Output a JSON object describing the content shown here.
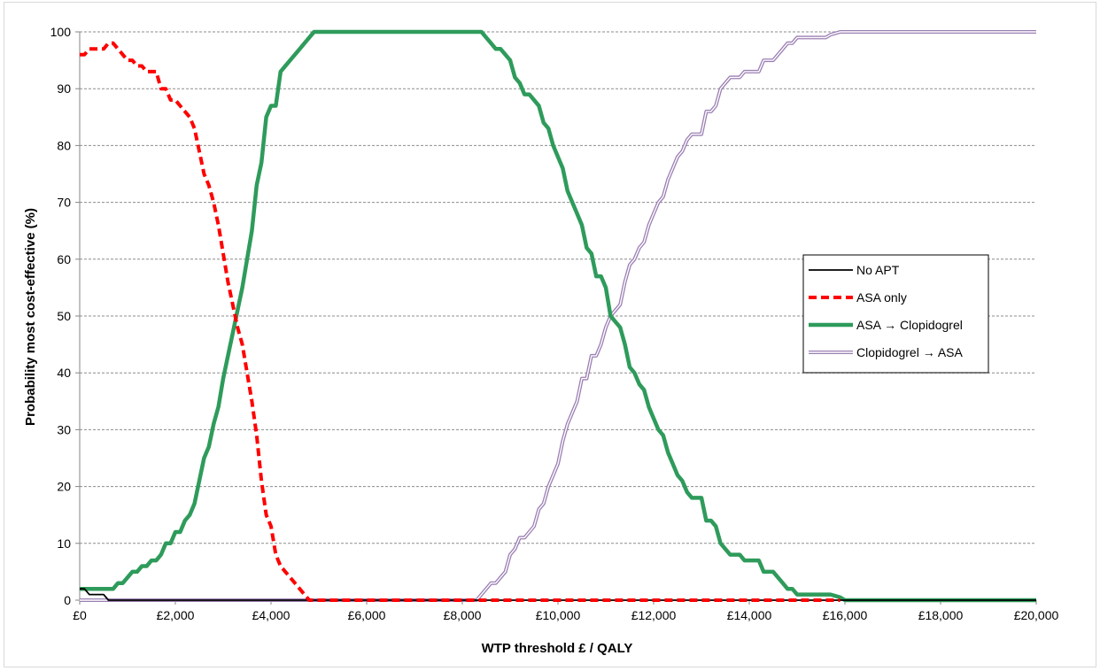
{
  "chart_data": {
    "type": "line",
    "title": "",
    "xlabel": "WTP threshold £ / QALY",
    "ylabel": "Probability most cost-effective (%)",
    "xlim": [
      0,
      20000
    ],
    "ylim": [
      0,
      100
    ],
    "grid": "horizontal dashed",
    "legend_position": "right-center",
    "x_ticks": [
      0,
      2000,
      4000,
      6000,
      8000,
      10000,
      12000,
      14000,
      16000,
      18000,
      20000
    ],
    "x_tick_labels": [
      "£0",
      "£2,000",
      "£4,000",
      "£6,000",
      "£8,000",
      "£10,000",
      "£12,000",
      "£14,000",
      "£16,000",
      "£18,000",
      "£20,000"
    ],
    "y_ticks": [
      0,
      10,
      20,
      30,
      40,
      50,
      60,
      70,
      80,
      90,
      100
    ],
    "y_tick_labels": [
      "0",
      "10",
      "20",
      "30",
      "40",
      "50",
      "60",
      "70",
      "80",
      "90",
      "100"
    ],
    "series": [
      {
        "name": "No APT",
        "color": "#000000",
        "style": "solid-thin",
        "points": [
          [
            0,
            2
          ],
          [
            100,
            2
          ],
          [
            200,
            1
          ],
          [
            300,
            1
          ],
          [
            400,
            1
          ],
          [
            500,
            1
          ],
          [
            600,
            0
          ],
          [
            700,
            0
          ],
          [
            20000,
            0
          ]
        ]
      },
      {
        "name": "ASA only",
        "color": "#ff0000",
        "style": "dashed",
        "points": [
          [
            0,
            96
          ],
          [
            100,
            96
          ],
          [
            200,
            97
          ],
          [
            300,
            97
          ],
          [
            400,
            97
          ],
          [
            500,
            97
          ],
          [
            600,
            98
          ],
          [
            700,
            98
          ],
          [
            800,
            97
          ],
          [
            900,
            96
          ],
          [
            1000,
            95
          ],
          [
            1100,
            95
          ],
          [
            1200,
            94
          ],
          [
            1300,
            94
          ],
          [
            1400,
            93
          ],
          [
            1500,
            93
          ],
          [
            1600,
            93
          ],
          [
            1700,
            90
          ],
          [
            1800,
            90
          ],
          [
            1900,
            88
          ],
          [
            2000,
            88
          ],
          [
            2100,
            87
          ],
          [
            2200,
            86
          ],
          [
            2300,
            85
          ],
          [
            2400,
            83
          ],
          [
            2500,
            79
          ],
          [
            2600,
            75
          ],
          [
            2700,
            73
          ],
          [
            2800,
            70
          ],
          [
            2900,
            66
          ],
          [
            3000,
            61
          ],
          [
            3100,
            56
          ],
          [
            3200,
            52
          ],
          [
            3300,
            48
          ],
          [
            3400,
            45
          ],
          [
            3500,
            40
          ],
          [
            3600,
            35
          ],
          [
            3700,
            29
          ],
          [
            3800,
            21
          ],
          [
            3900,
            15
          ],
          [
            4000,
            13
          ],
          [
            4100,
            8
          ],
          [
            4200,
            6
          ],
          [
            4300,
            5
          ],
          [
            4400,
            4
          ],
          [
            4500,
            3
          ],
          [
            4600,
            2
          ],
          [
            4700,
            1
          ],
          [
            4800,
            0
          ],
          [
            15900,
            0
          ]
        ]
      },
      {
        "name": "ASA → Clopidogrel",
        "color": "#2e9b5b",
        "style": "solid-thick",
        "points": [
          [
            0,
            2
          ],
          [
            100,
            2
          ],
          [
            200,
            2
          ],
          [
            300,
            2
          ],
          [
            400,
            2
          ],
          [
            500,
            2
          ],
          [
            600,
            2
          ],
          [
            700,
            2
          ],
          [
            800,
            3
          ],
          [
            900,
            3
          ],
          [
            1000,
            4
          ],
          [
            1100,
            5
          ],
          [
            1200,
            5
          ],
          [
            1300,
            6
          ],
          [
            1400,
            6
          ],
          [
            1500,
            7
          ],
          [
            1600,
            7
          ],
          [
            1700,
            8
          ],
          [
            1800,
            10
          ],
          [
            1900,
            10
          ],
          [
            2000,
            12
          ],
          [
            2100,
            12
          ],
          [
            2200,
            14
          ],
          [
            2300,
            15
          ],
          [
            2400,
            17
          ],
          [
            2500,
            21
          ],
          [
            2600,
            25
          ],
          [
            2700,
            27
          ],
          [
            2800,
            31
          ],
          [
            2900,
            34
          ],
          [
            3000,
            39
          ],
          [
            3100,
            43
          ],
          [
            3200,
            47
          ],
          [
            3300,
            51
          ],
          [
            3400,
            55
          ],
          [
            3500,
            60
          ],
          [
            3600,
            65
          ],
          [
            3700,
            73
          ],
          [
            3800,
            77
          ],
          [
            3900,
            85
          ],
          [
            4000,
            87
          ],
          [
            4100,
            87
          ],
          [
            4200,
            93
          ],
          [
            4300,
            94
          ],
          [
            4400,
            95
          ],
          [
            4500,
            96
          ],
          [
            4600,
            97
          ],
          [
            4700,
            98
          ],
          [
            4800,
            99
          ],
          [
            4900,
            100
          ],
          [
            8400,
            100
          ],
          [
            8500,
            99
          ],
          [
            8600,
            98
          ],
          [
            8700,
            97
          ],
          [
            8800,
            97
          ],
          [
            8900,
            96
          ],
          [
            9000,
            95
          ],
          [
            9100,
            92
          ],
          [
            9200,
            91
          ],
          [
            9300,
            89
          ],
          [
            9400,
            89
          ],
          [
            9500,
            88
          ],
          [
            9600,
            87
          ],
          [
            9700,
            84
          ],
          [
            9800,
            83
          ],
          [
            9900,
            80
          ],
          [
            10000,
            78
          ],
          [
            10100,
            76
          ],
          [
            10200,
            72
          ],
          [
            10300,
            70
          ],
          [
            10400,
            68
          ],
          [
            10500,
            66
          ],
          [
            10600,
            62
          ],
          [
            10700,
            61
          ],
          [
            10800,
            57
          ],
          [
            10900,
            57
          ],
          [
            11000,
            55
          ],
          [
            11100,
            50
          ],
          [
            11200,
            49
          ],
          [
            11300,
            48
          ],
          [
            11400,
            45
          ],
          [
            11500,
            41
          ],
          [
            11600,
            40
          ],
          [
            11700,
            38
          ],
          [
            11800,
            37
          ],
          [
            11900,
            34
          ],
          [
            12000,
            32
          ],
          [
            12100,
            30
          ],
          [
            12200,
            29
          ],
          [
            12300,
            26
          ],
          [
            12400,
            24
          ],
          [
            12500,
            22
          ],
          [
            12600,
            21
          ],
          [
            12700,
            19
          ],
          [
            12800,
            18
          ],
          [
            13000,
            18
          ],
          [
            13100,
            14
          ],
          [
            13200,
            14
          ],
          [
            13300,
            13
          ],
          [
            13400,
            10
          ],
          [
            13500,
            9
          ],
          [
            13600,
            8
          ],
          [
            13800,
            8
          ],
          [
            13900,
            7
          ],
          [
            14200,
            7
          ],
          [
            14300,
            5
          ],
          [
            14500,
            5
          ],
          [
            14600,
            4
          ],
          [
            14700,
            3
          ],
          [
            14800,
            2
          ],
          [
            14900,
            2
          ],
          [
            15000,
            1
          ],
          [
            15500,
            1
          ],
          [
            15600,
            1
          ],
          [
            15700,
            1
          ],
          [
            15900,
            0.5
          ],
          [
            16000,
            0
          ],
          [
            20000,
            0
          ]
        ]
      },
      {
        "name": "Clopidogrel  → ASA",
        "color": "#9b7fb3",
        "style": "double-thin",
        "points": [
          [
            0,
            0
          ],
          [
            8300,
            0
          ],
          [
            8400,
            1
          ],
          [
            8500,
            2
          ],
          [
            8600,
            3
          ],
          [
            8700,
            3
          ],
          [
            8800,
            4
          ],
          [
            8900,
            5
          ],
          [
            9000,
            8
          ],
          [
            9100,
            9
          ],
          [
            9200,
            11
          ],
          [
            9300,
            11
          ],
          [
            9400,
            12
          ],
          [
            9500,
            13
          ],
          [
            9600,
            16
          ],
          [
            9700,
            17
          ],
          [
            9800,
            20
          ],
          [
            9900,
            22
          ],
          [
            10000,
            24
          ],
          [
            10100,
            28
          ],
          [
            10200,
            31
          ],
          [
            10300,
            33
          ],
          [
            10400,
            35
          ],
          [
            10500,
            39
          ],
          [
            10600,
            39
          ],
          [
            10700,
            43
          ],
          [
            10800,
            43
          ],
          [
            10900,
            45
          ],
          [
            11000,
            48
          ],
          [
            11100,
            50
          ],
          [
            11200,
            51
          ],
          [
            11300,
            52
          ],
          [
            11400,
            56
          ],
          [
            11500,
            59
          ],
          [
            11600,
            60
          ],
          [
            11700,
            62
          ],
          [
            11800,
            63
          ],
          [
            11900,
            66
          ],
          [
            12000,
            68
          ],
          [
            12100,
            70
          ],
          [
            12200,
            71
          ],
          [
            12300,
            74
          ],
          [
            12400,
            76
          ],
          [
            12500,
            78
          ],
          [
            12600,
            79
          ],
          [
            12700,
            81
          ],
          [
            12800,
            82
          ],
          [
            13000,
            82
          ],
          [
            13100,
            86
          ],
          [
            13200,
            86
          ],
          [
            13300,
            87
          ],
          [
            13400,
            90
          ],
          [
            13500,
            91
          ],
          [
            13600,
            92
          ],
          [
            13800,
            92
          ],
          [
            13900,
            93
          ],
          [
            14200,
            93
          ],
          [
            14300,
            95
          ],
          [
            14500,
            95
          ],
          [
            14600,
            96
          ],
          [
            14700,
            97
          ],
          [
            14800,
            98
          ],
          [
            14900,
            98
          ],
          [
            15000,
            99
          ],
          [
            15500,
            99
          ],
          [
            15600,
            99
          ],
          [
            15700,
            99.5
          ],
          [
            15900,
            100
          ],
          [
            20000,
            100
          ]
        ]
      }
    ]
  }
}
